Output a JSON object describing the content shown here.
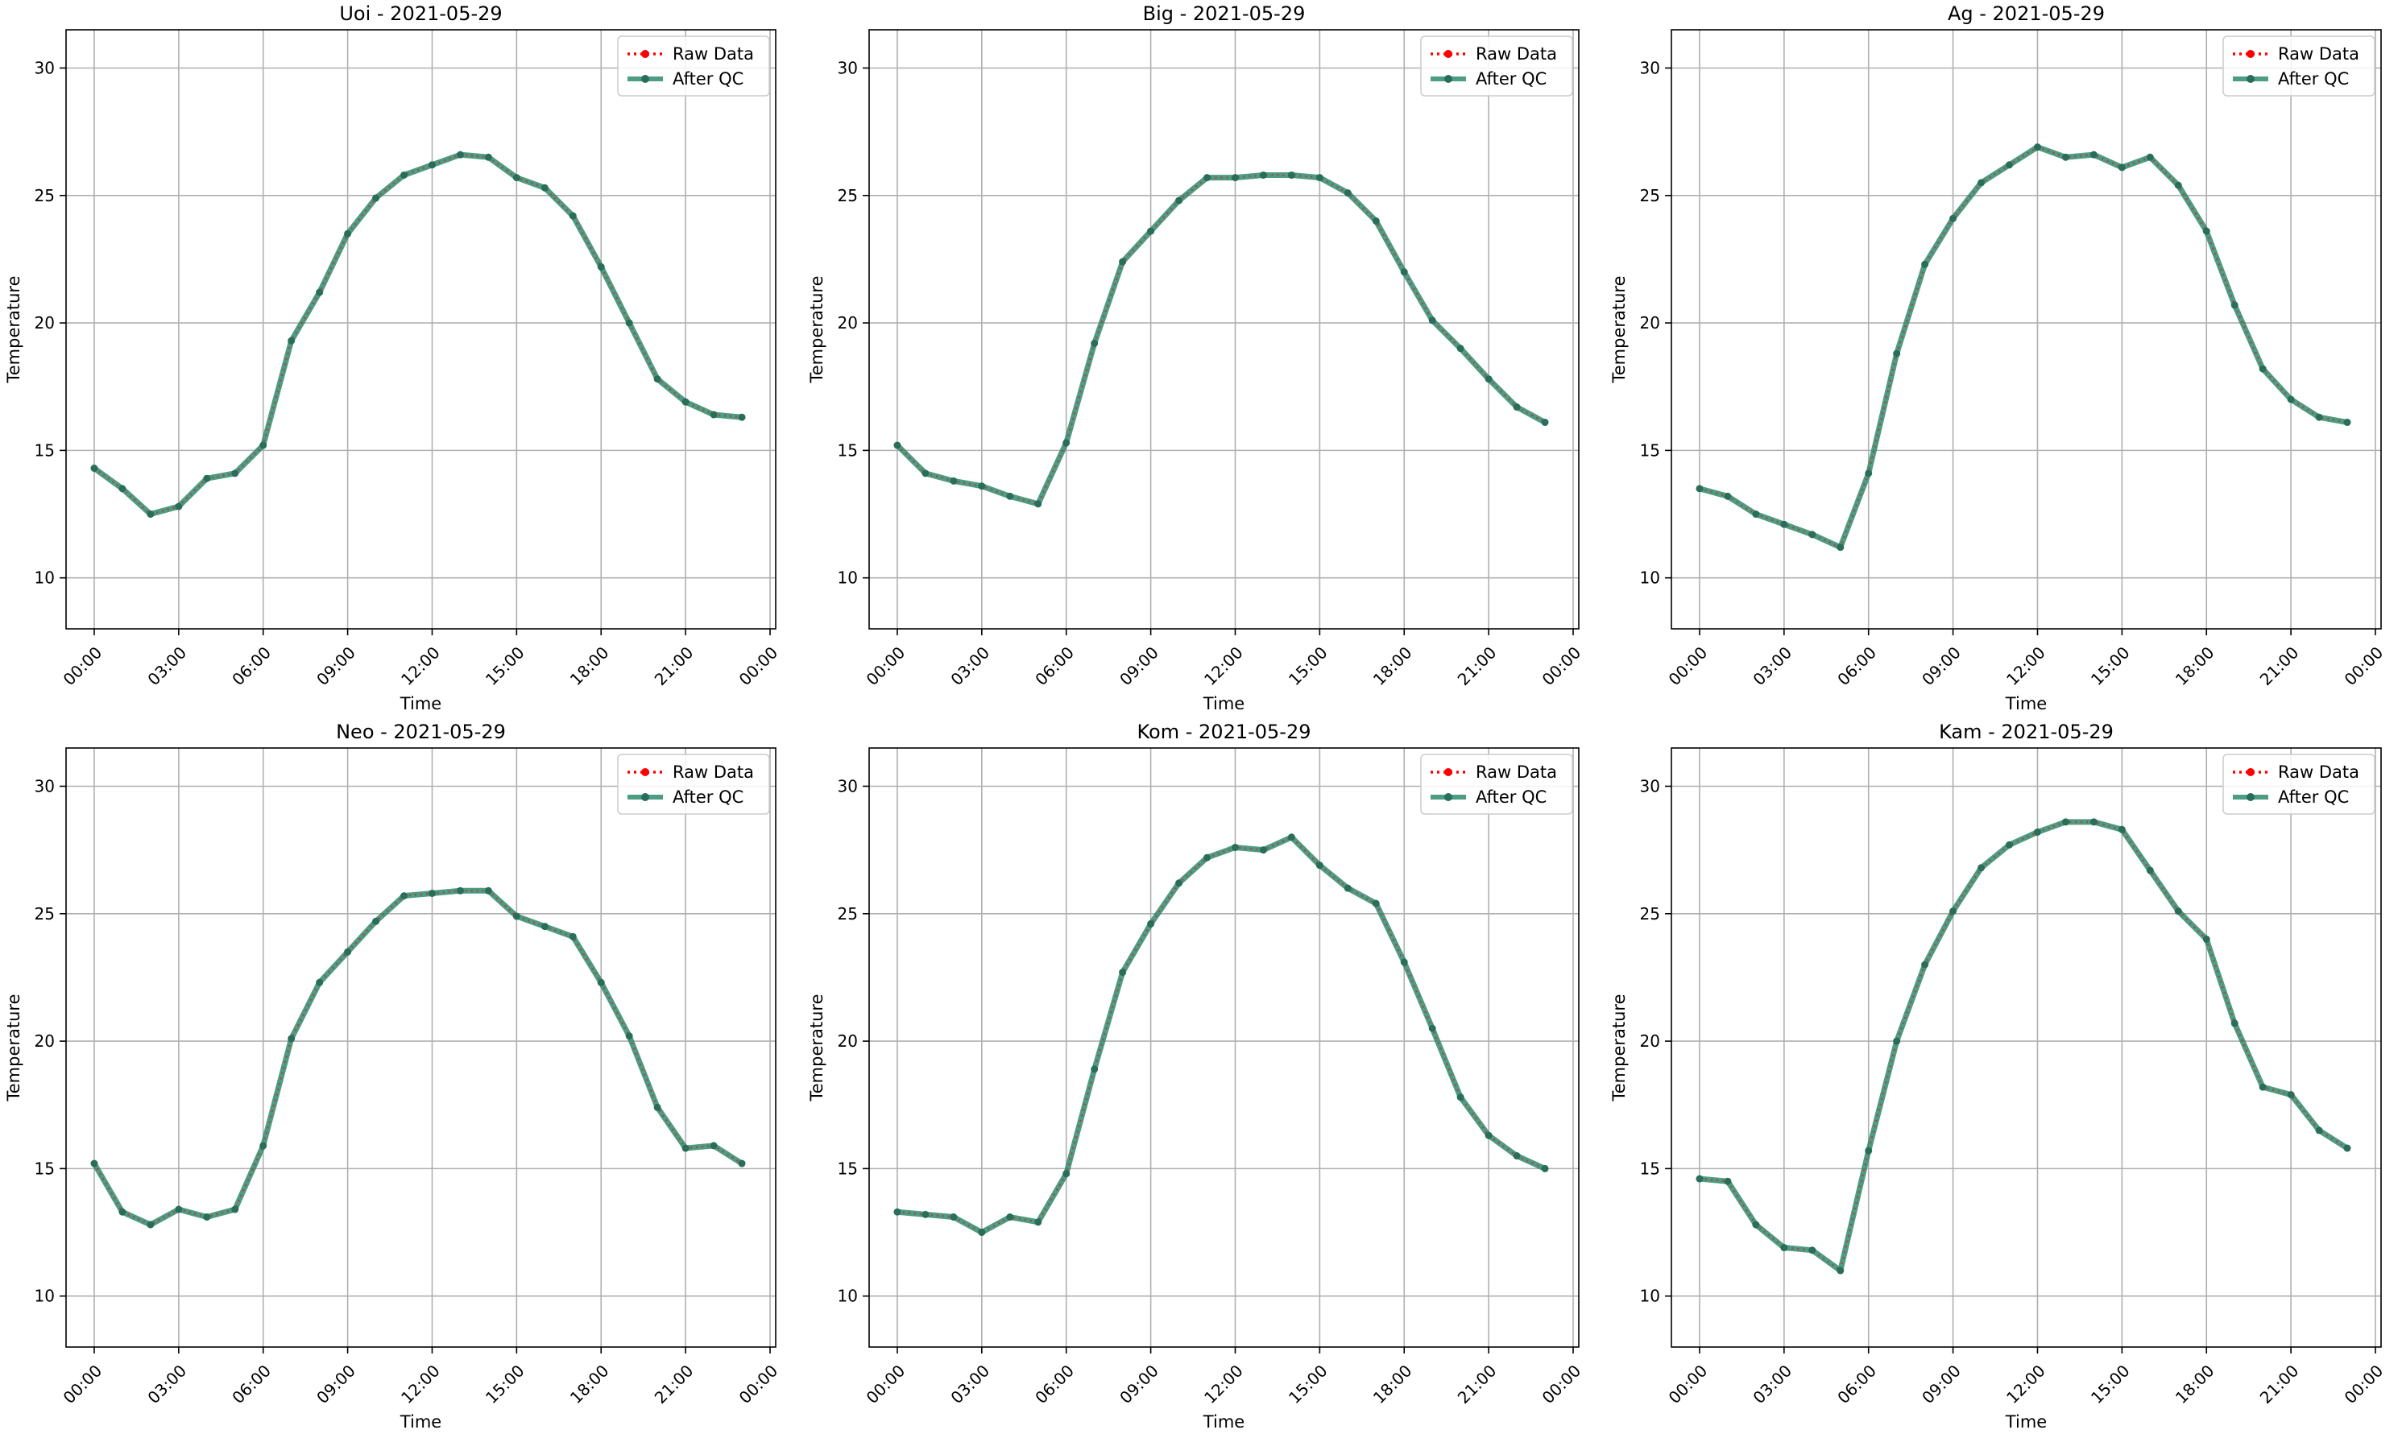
{
  "chart_data": [
    {
      "type": "line",
      "title": "Uoi - 2021-05-29",
      "xlabel": "Time",
      "ylabel": "Temperature",
      "xlim_hours": [
        -1,
        24.2
      ],
      "ylim": [
        8,
        31.5
      ],
      "x_ticks": [
        "00:00",
        "03:00",
        "06:00",
        "09:00",
        "12:00",
        "15:00",
        "18:00",
        "21:00",
        "00:00"
      ],
      "y_ticks": [
        10,
        15,
        20,
        25,
        30
      ],
      "grid": true,
      "legend": "top-right",
      "series": [
        {
          "name": "Raw Data",
          "color": "#ff0000",
          "style": "dotted",
          "values": [
            14.3,
            13.5,
            12.5,
            12.8,
            13.9,
            14.1,
            15.2,
            19.3,
            21.2,
            23.5,
            24.9,
            25.8,
            26.2,
            26.6,
            26.5,
            25.7,
            25.3,
            24.2,
            22.2,
            20.0,
            17.8,
            16.9,
            16.4,
            16.3
          ]
        },
        {
          "name": "After QC",
          "color": "#2e8b6e",
          "style": "solid",
          "values": [
            14.3,
            13.5,
            12.5,
            12.8,
            13.9,
            14.1,
            15.2,
            19.3,
            21.2,
            23.5,
            24.9,
            25.8,
            26.2,
            26.6,
            26.5,
            25.7,
            25.3,
            24.2,
            22.2,
            20.0,
            17.8,
            16.9,
            16.4,
            16.3
          ]
        }
      ]
    },
    {
      "type": "line",
      "title": "Big - 2021-05-29",
      "xlabel": "Time",
      "ylabel": "Temperature",
      "xlim_hours": [
        -1,
        24.2
      ],
      "ylim": [
        8,
        31.5
      ],
      "x_ticks": [
        "00:00",
        "03:00",
        "06:00",
        "09:00",
        "12:00",
        "15:00",
        "18:00",
        "21:00",
        "00:00"
      ],
      "y_ticks": [
        10,
        15,
        20,
        25,
        30
      ],
      "grid": true,
      "legend": "top-right",
      "series": [
        {
          "name": "Raw Data",
          "color": "#ff0000",
          "style": "dotted",
          "values": [
            15.2,
            14.1,
            13.8,
            13.6,
            13.2,
            12.9,
            15.3,
            19.2,
            22.4,
            23.6,
            24.8,
            25.7,
            25.7,
            25.8,
            25.8,
            25.7,
            25.1,
            24.0,
            22.0,
            20.1,
            19.0,
            17.8,
            16.7,
            16.1
          ]
        },
        {
          "name": "After QC",
          "color": "#2e8b6e",
          "style": "solid",
          "values": [
            15.2,
            14.1,
            13.8,
            13.6,
            13.2,
            12.9,
            15.3,
            19.2,
            22.4,
            23.6,
            24.8,
            25.7,
            25.7,
            25.8,
            25.8,
            25.7,
            25.1,
            24.0,
            22.0,
            20.1,
            19.0,
            17.8,
            16.7,
            16.1
          ]
        }
      ]
    },
    {
      "type": "line",
      "title": "Ag - 2021-05-29",
      "xlabel": "Time",
      "ylabel": "Temperature",
      "xlim_hours": [
        -1,
        24.2
      ],
      "ylim": [
        8,
        31.5
      ],
      "x_ticks": [
        "00:00",
        "03:00",
        "06:00",
        "09:00",
        "12:00",
        "15:00",
        "18:00",
        "21:00",
        "00:00"
      ],
      "y_ticks": [
        10,
        15,
        20,
        25,
        30
      ],
      "grid": true,
      "legend": "top-right",
      "series": [
        {
          "name": "Raw Data",
          "color": "#ff0000",
          "style": "dotted",
          "values": [
            13.5,
            13.2,
            12.5,
            12.1,
            11.7,
            11.2,
            14.1,
            18.8,
            22.3,
            24.1,
            25.5,
            26.2,
            26.9,
            26.5,
            26.6,
            26.1,
            26.5,
            25.4,
            23.6,
            20.7,
            18.2,
            17.0,
            16.3,
            16.1
          ]
        },
        {
          "name": "After QC",
          "color": "#2e8b6e",
          "style": "solid",
          "values": [
            13.5,
            13.2,
            12.5,
            12.1,
            11.7,
            11.2,
            14.1,
            18.8,
            22.3,
            24.1,
            25.5,
            26.2,
            26.9,
            26.5,
            26.6,
            26.1,
            26.5,
            25.4,
            23.6,
            20.7,
            18.2,
            17.0,
            16.3,
            16.1
          ]
        }
      ]
    },
    {
      "type": "line",
      "title": "Neo - 2021-05-29",
      "xlabel": "Time",
      "ylabel": "Temperature",
      "xlim_hours": [
        -1,
        24.2
      ],
      "ylim": [
        8,
        31.5
      ],
      "x_ticks": [
        "00:00",
        "03:00",
        "06:00",
        "09:00",
        "12:00",
        "15:00",
        "18:00",
        "21:00",
        "00:00"
      ],
      "y_ticks": [
        10,
        15,
        20,
        25,
        30
      ],
      "grid": true,
      "legend": "top-right",
      "series": [
        {
          "name": "Raw Data",
          "color": "#ff0000",
          "style": "dotted",
          "values": [
            15.2,
            13.3,
            12.8,
            13.4,
            13.1,
            13.4,
            15.9,
            20.1,
            22.3,
            23.5,
            24.7,
            25.7,
            25.8,
            25.9,
            25.9,
            24.9,
            24.5,
            24.1,
            22.3,
            20.2,
            17.4,
            15.8,
            15.9,
            15.2
          ]
        },
        {
          "name": "After QC",
          "color": "#2e8b6e",
          "style": "solid",
          "values": [
            15.2,
            13.3,
            12.8,
            13.4,
            13.1,
            13.4,
            15.9,
            20.1,
            22.3,
            23.5,
            24.7,
            25.7,
            25.8,
            25.9,
            25.9,
            24.9,
            24.5,
            24.1,
            22.3,
            20.2,
            17.4,
            15.8,
            15.9,
            15.2
          ]
        }
      ]
    },
    {
      "type": "line",
      "title": "Kom - 2021-05-29",
      "xlabel": "Time",
      "ylabel": "Temperature",
      "xlim_hours": [
        -1,
        24.2
      ],
      "ylim": [
        8,
        31.5
      ],
      "x_ticks": [
        "00:00",
        "03:00",
        "06:00",
        "09:00",
        "12:00",
        "15:00",
        "18:00",
        "21:00",
        "00:00"
      ],
      "y_ticks": [
        10,
        15,
        20,
        25,
        30
      ],
      "grid": true,
      "legend": "top-right",
      "series": [
        {
          "name": "Raw Data",
          "color": "#ff0000",
          "style": "dotted",
          "values": [
            13.3,
            13.2,
            13.1,
            12.5,
            13.1,
            12.9,
            14.8,
            18.9,
            22.7,
            24.6,
            26.2,
            27.2,
            27.6,
            27.5,
            28.0,
            26.9,
            26.0,
            25.4,
            23.1,
            20.5,
            17.8,
            16.3,
            15.5,
            15.0
          ]
        },
        {
          "name": "After QC",
          "color": "#2e8b6e",
          "style": "solid",
          "values": [
            13.3,
            13.2,
            13.1,
            12.5,
            13.1,
            12.9,
            14.8,
            18.9,
            22.7,
            24.6,
            26.2,
            27.2,
            27.6,
            27.5,
            28.0,
            26.9,
            26.0,
            25.4,
            23.1,
            20.5,
            17.8,
            16.3,
            15.5,
            15.0
          ]
        }
      ]
    },
    {
      "type": "line",
      "title": "Kam - 2021-05-29",
      "xlabel": "Time",
      "ylabel": "Temperature",
      "xlim_hours": [
        -1,
        24.2
      ],
      "ylim": [
        8,
        31.5
      ],
      "x_ticks": [
        "00:00",
        "03:00",
        "06:00",
        "09:00",
        "12:00",
        "15:00",
        "18:00",
        "21:00",
        "00:00"
      ],
      "y_ticks": [
        10,
        15,
        20,
        25,
        30
      ],
      "grid": true,
      "legend": "top-right",
      "series": [
        {
          "name": "Raw Data",
          "color": "#ff0000",
          "style": "dotted",
          "values": [
            14.6,
            14.5,
            12.8,
            11.9,
            11.8,
            11.0,
            15.7,
            20.0,
            23.0,
            25.1,
            26.8,
            27.7,
            28.2,
            28.6,
            28.6,
            28.3,
            26.7,
            25.1,
            24.0,
            20.7,
            18.2,
            17.9,
            16.5,
            15.8
          ]
        },
        {
          "name": "After QC",
          "color": "#2e8b6e",
          "style": "solid",
          "values": [
            14.6,
            14.5,
            12.8,
            11.9,
            11.8,
            11.0,
            15.7,
            20.0,
            23.0,
            25.1,
            26.8,
            27.7,
            28.2,
            28.6,
            28.6,
            28.3,
            26.7,
            25.1,
            24.0,
            20.7,
            18.2,
            17.9,
            16.5,
            15.8
          ]
        }
      ]
    }
  ]
}
